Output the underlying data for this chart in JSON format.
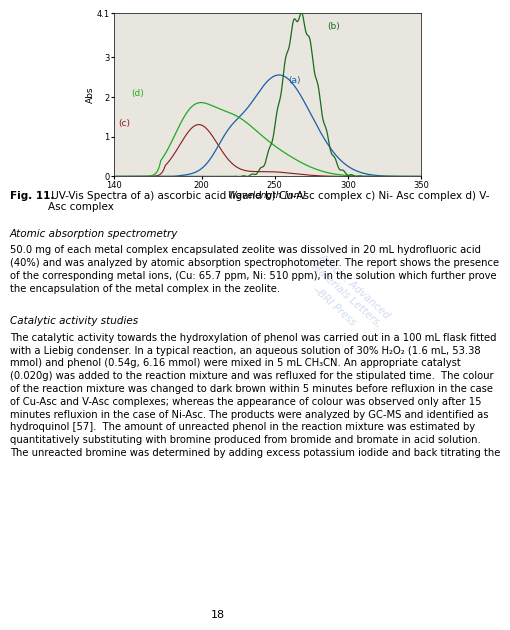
{
  "title": "",
  "xlabel": "Wavelength [nm]",
  "ylabel": "Abs",
  "xlim": [
    140,
    350
  ],
  "ylim": [
    0,
    4.1
  ],
  "xticks": [
    140,
    200,
    250,
    300,
    350
  ],
  "ytick_labels": [
    "0",
    "1",
    "2",
    "3",
    "4.1"
  ],
  "ytick_vals": [
    0,
    1,
    2,
    3,
    4.1
  ],
  "page_bg": "#ffffff",
  "plot_bg": "#e8e6df",
  "series": {
    "a_color": "#1a5fa8",
    "b_color": "#1a6b1a",
    "c_color": "#8b1a1a",
    "d_color": "#22aa22"
  },
  "watermark_lines": [
    "Article: Advanced",
    "Materials Letters,",
    "̶BRI Press"
  ],
  "watermark_color": "#aec6e8",
  "watermark_alpha": 0.6,
  "fig_caption_bold": "Fig. 11.",
  "fig_caption_rest": " UV-Vis Spectra of a) ascorbic acid ligand b) Cu-Asc complex c) Ni- Asc complex d) V-\nAsc complex",
  "section1_italic": "Atomic absorption spectrometry",
  "section1_body": "50.0 mg of each metal complex encapsulated zeolite was dissolved in 20 mL hydrofluoric acid\n(40%) and was analyzed by atomic absorption spectrophotometer. The report shows the presence\nof the corresponding metal ions, (Cu: 65.7 ppm, Ni: 510 ppm), in the solution which further prove\nthe encapsulation of the metal complex in the zeolite.",
  "section2_italic": "Catalytic activity studies",
  "section2_body": "The catalytic activity towards the hydroxylation of phenol was carried out in a 100 mL flask fitted\nwith a Liebig condenser. In a typical reaction, an aqueous solution of 30% H₂O₂ (1.6 mL, 53.38\nmmol) and phenol (0.54g, 6.16 mmol) were mixed in 5 mL CH₃CN. An appropriate catalyst\n(0.020g) was added to the reaction mixture and was refluxed for the stipulated time.  The colour\nof the reaction mixture was changed to dark brown within 5 minutes before refluxion in the case\nof Cu-Asc and V-Asc complexes; whereas the appearance of colour was observed only after 15\nminutes refluxion in the case of Ni-Asc. The products were analyzed by GC-MS and identified as\nhydroquinol [57].  The amount of unreacted phenol in the reaction mixture was estimated by\nquantitatively substituting with bromine produced from bromide and bromate in acid solution.\nThe unreacted bromine was determined by adding excess potassium iodide and back titrating the",
  "page_number": "18"
}
